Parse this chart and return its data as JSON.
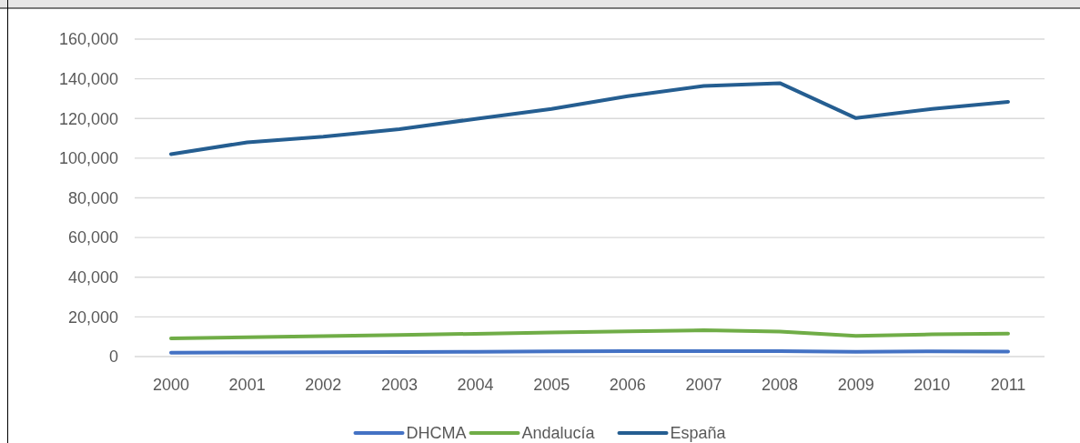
{
  "chart_data": {
    "type": "line",
    "categories": [
      "2000",
      "2001",
      "2002",
      "2003",
      "2004",
      "2005",
      "2006",
      "2007",
      "2008",
      "2009",
      "2010",
      "2011"
    ],
    "series": [
      {
        "name": "DHCMA",
        "color": "#4472c4",
        "values": [
          2000,
          2100,
          2200,
          2300,
          2400,
          2600,
          2700,
          2800,
          2800,
          2400,
          2600,
          2500
        ]
      },
      {
        "name": "Andalucía",
        "color": "#70ad47",
        "values": [
          9200,
          9700,
          10300,
          10900,
          11500,
          12100,
          12700,
          13300,
          12600,
          10400,
          11200,
          11600
        ]
      },
      {
        "name": "España",
        "color": "#255e91",
        "values": [
          102000,
          108000,
          110800,
          114600,
          119800,
          124800,
          131200,
          136400,
          137800,
          120200,
          124800,
          128400
        ]
      }
    ],
    "ylim": [
      0,
      160000
    ],
    "yticks": [
      {
        "value": 0,
        "label": "0"
      },
      {
        "value": 20000,
        "label": "20,000"
      },
      {
        "value": 40000,
        "label": "40,000"
      },
      {
        "value": 60000,
        "label": "60,000"
      },
      {
        "value": 80000,
        "label": "80,000"
      },
      {
        "value": 100000,
        "label": "100,000"
      },
      {
        "value": 120000,
        "label": "120,000"
      },
      {
        "value": 140000,
        "label": "140,000"
      },
      {
        "value": 160000,
        "label": "160,000"
      }
    ],
    "grid": "y",
    "legend": "bottom",
    "line_style": "solid",
    "marker": "none"
  }
}
